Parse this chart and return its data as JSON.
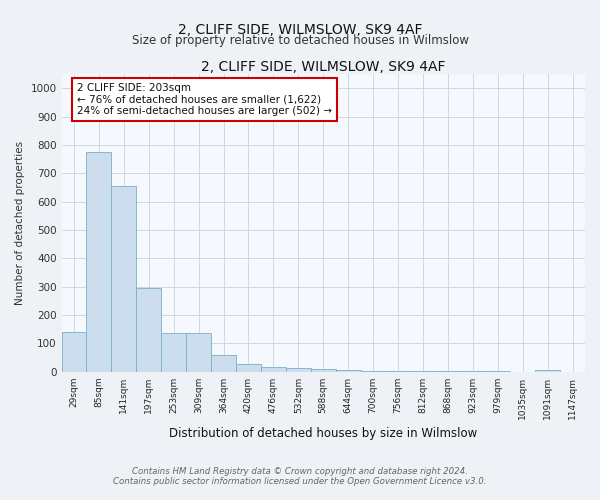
{
  "title": "2, CLIFF SIDE, WILMSLOW, SK9 4AF",
  "subtitle": "Size of property relative to detached houses in Wilmslow",
  "xlabel": "Distribution of detached houses by size in Wilmslow",
  "ylabel": "Number of detached properties",
  "bar_values": [
    140,
    775,
    655,
    295,
    137,
    137,
    58,
    27,
    17,
    13,
    8,
    5,
    4,
    3,
    2,
    2,
    1,
    1,
    0,
    7,
    0
  ],
  "bar_labels": [
    "29sqm",
    "85sqm",
    "141sqm",
    "197sqm",
    "253sqm",
    "309sqm",
    "364sqm",
    "420sqm",
    "476sqm",
    "532sqm",
    "588sqm",
    "644sqm",
    "700sqm",
    "756sqm",
    "812sqm",
    "868sqm",
    "923sqm",
    "979sqm",
    "1035sqm",
    "1091sqm",
    "1147sqm"
  ],
  "bar_color": "#ccdded",
  "bar_edge_color": "#7aafc8",
  "annotation_text": "2 CLIFF SIDE: 203sqm\n← 76% of detached houses are smaller (1,622)\n24% of semi-detached houses are larger (502) →",
  "annotation_box_color": "#ffffff",
  "annotation_box_edge": "#cc0000",
  "ylim": [
    0,
    1050
  ],
  "yticks": [
    0,
    100,
    200,
    300,
    400,
    500,
    600,
    700,
    800,
    900,
    1000
  ],
  "footnote1": "Contains HM Land Registry data © Crown copyright and database right 2024.",
  "footnote2": "Contains public sector information licensed under the Open Government Licence v3.0.",
  "background_color": "#eef2f7",
  "plot_bg_color": "#f5f8fc",
  "grid_color": "#c8d4e0"
}
